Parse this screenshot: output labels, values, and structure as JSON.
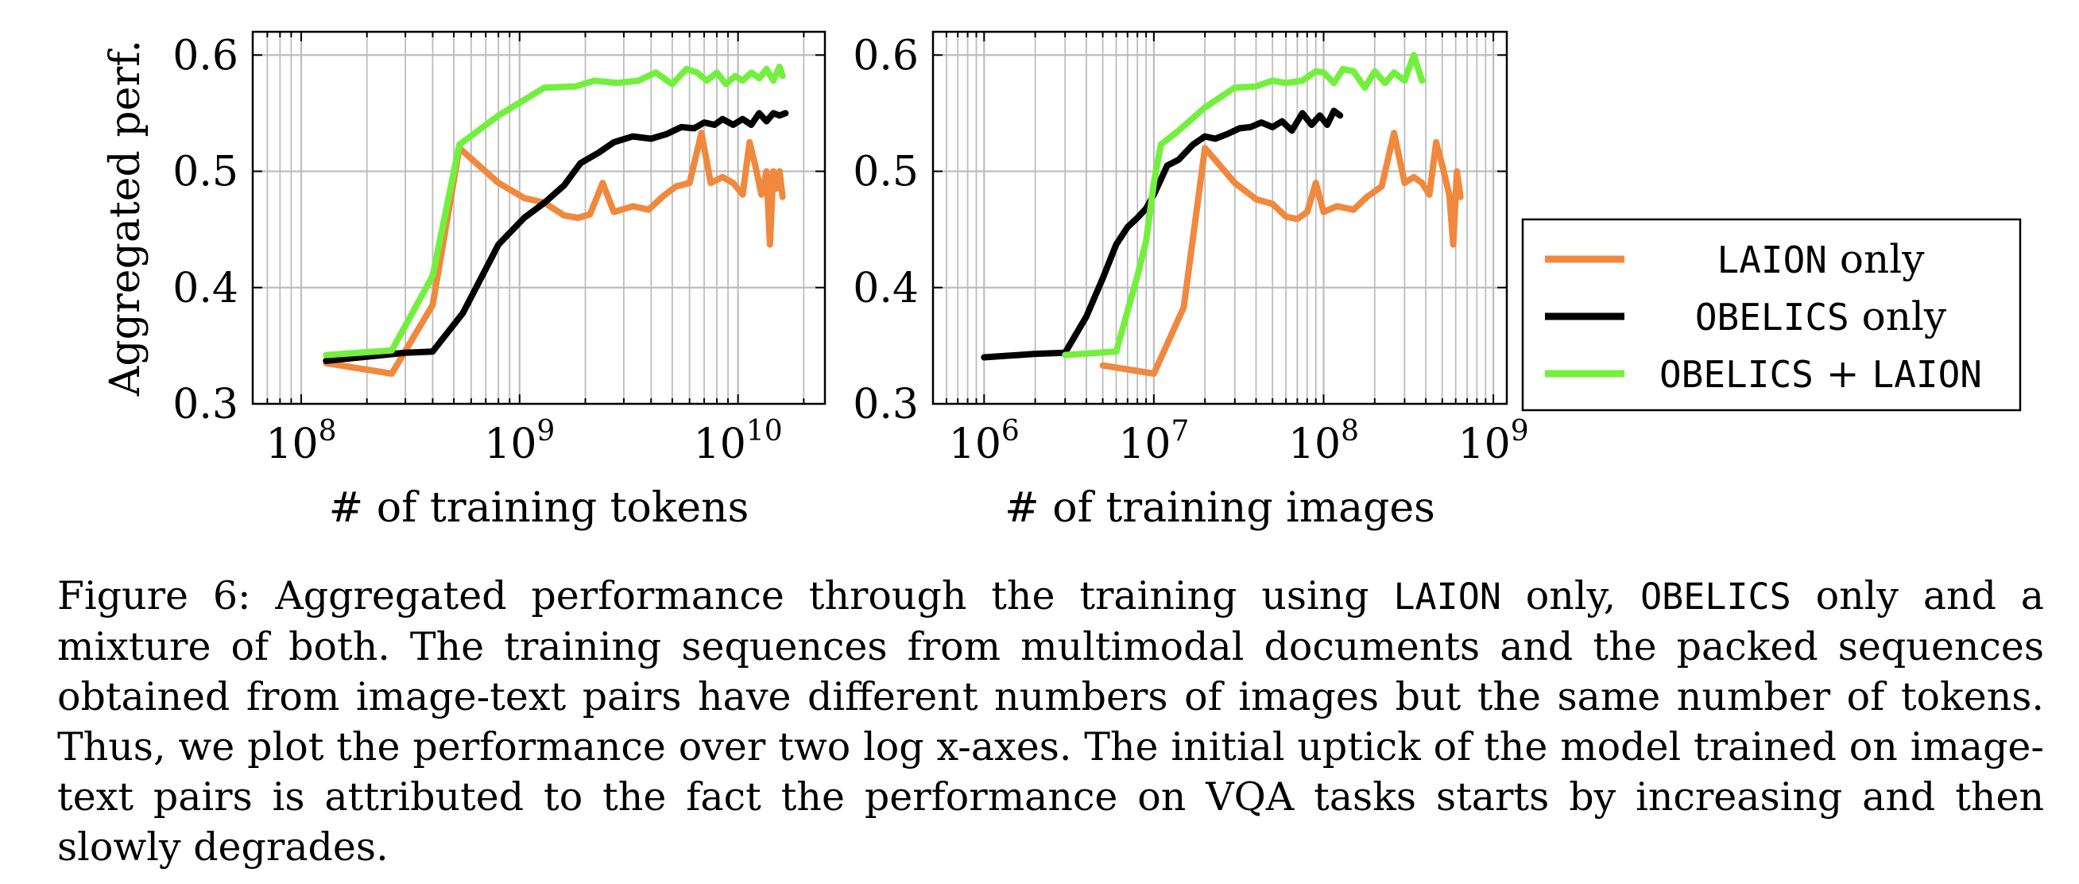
{
  "chart_data": [
    {
      "type": "line",
      "xlabel": "# of training tokens",
      "ylabel": "Aggregated perf.",
      "xscale": "log",
      "xlim": [
        60000000,
        25000000000
      ],
      "ylim": [
        0.3,
        0.62
      ],
      "xticks": [
        100000000,
        1000000000,
        10000000000
      ],
      "xtick_labels": [
        {
          "base": "10",
          "exp": "8"
        },
        {
          "base": "10",
          "exp": "9"
        },
        {
          "base": "10",
          "exp": "10"
        }
      ],
      "yticks": [
        "0.3",
        "0.4",
        "0.5",
        "0.6"
      ],
      "grid": true,
      "series": [
        {
          "name": "LAION only",
          "color": "#f0883e",
          "x": [
            130000000,
            260000000,
            400000000,
            530000000,
            800000000,
            1050000000,
            1300000000,
            1600000000,
            1850000000,
            2100000000,
            2400000000,
            2700000000,
            3300000000,
            3900000000,
            4500000000,
            5200000000,
            6000000000,
            6800000000,
            7500000000,
            8500000000,
            9500000000,
            10500000000,
            11300000000,
            12000000000,
            12800000000,
            13500000000,
            14000000000,
            14500000000,
            15000000000,
            15500000000,
            16000000000
          ],
          "y": [
            0.335,
            0.326,
            0.385,
            0.52,
            0.49,
            0.477,
            0.473,
            0.462,
            0.46,
            0.463,
            0.49,
            0.465,
            0.47,
            0.467,
            0.478,
            0.487,
            0.49,
            0.533,
            0.49,
            0.495,
            0.49,
            0.48,
            0.525,
            0.505,
            0.48,
            0.5,
            0.437,
            0.5,
            0.485,
            0.5,
            0.478
          ]
        },
        {
          "name": "OBELICS only",
          "color": "#000000",
          "x": [
            130000000,
            300000000,
            400000000,
            550000000,
            800000000,
            1050000000,
            1300000000,
            1600000000,
            1900000000,
            2300000000,
            2700000000,
            3300000000,
            4000000000,
            4700000000,
            5500000000,
            6300000000,
            7000000000,
            7800000000,
            8500000000,
            9500000000,
            10500000000,
            11500000000,
            12500000000,
            13500000000,
            14500000000,
            15500000000,
            16500000000
          ],
          "y": [
            0.337,
            0.344,
            0.345,
            0.378,
            0.437,
            0.46,
            0.473,
            0.488,
            0.507,
            0.516,
            0.525,
            0.53,
            0.528,
            0.532,
            0.538,
            0.537,
            0.542,
            0.54,
            0.545,
            0.54,
            0.545,
            0.54,
            0.55,
            0.543,
            0.55,
            0.548,
            0.55
          ]
        },
        {
          "name": "OBELICS + LAION",
          "color": "#73f03e",
          "x": [
            130000000,
            260000000,
            400000000,
            530000000,
            800000000,
            1300000000,
            1800000000,
            2200000000,
            2800000000,
            3500000000,
            4200000000,
            5000000000,
            5800000000,
            6500000000,
            7200000000,
            8000000000,
            8800000000,
            9700000000,
            10500000000,
            11500000000,
            12500000000,
            13500000000,
            14500000000,
            15500000000,
            16000000000
          ],
          "y": [
            0.342,
            0.346,
            0.41,
            0.523,
            0.548,
            0.572,
            0.573,
            0.578,
            0.576,
            0.578,
            0.585,
            0.575,
            0.588,
            0.585,
            0.578,
            0.585,
            0.575,
            0.582,
            0.578,
            0.585,
            0.58,
            0.588,
            0.578,
            0.59,
            0.582
          ]
        }
      ]
    },
    {
      "type": "line",
      "xlabel": "# of training images",
      "ylabel": "",
      "xscale": "log",
      "xlim": [
        500000,
        1200000000
      ],
      "ylim": [
        0.3,
        0.62
      ],
      "xticks": [
        1000000,
        10000000,
        100000000,
        1000000000
      ],
      "xtick_labels": [
        {
          "base": "10",
          "exp": "6"
        },
        {
          "base": "10",
          "exp": "7"
        },
        {
          "base": "10",
          "exp": "8"
        },
        {
          "base": "10",
          "exp": "9"
        }
      ],
      "yticks": [
        "0.3",
        "0.4",
        "0.5",
        "0.6"
      ],
      "grid": true,
      "series": [
        {
          "name": "LAION only",
          "color": "#f0883e",
          "x": [
            5000000,
            10000000,
            15000000,
            20000000,
            30000000,
            40000000,
            50000000,
            60000000,
            70000000,
            80000000,
            90000000,
            100000000,
            120000000,
            150000000,
            180000000,
            220000000,
            260000000,
            300000000,
            340000000,
            380000000,
            420000000,
            460000000,
            500000000,
            550000000,
            580000000,
            610000000,
            640000000
          ],
          "y": [
            0.333,
            0.326,
            0.383,
            0.52,
            0.49,
            0.476,
            0.472,
            0.461,
            0.459,
            0.465,
            0.49,
            0.465,
            0.47,
            0.467,
            0.478,
            0.487,
            0.533,
            0.49,
            0.495,
            0.49,
            0.48,
            0.525,
            0.505,
            0.48,
            0.437,
            0.5,
            0.478
          ]
        },
        {
          "name": "OBELICS only",
          "color": "#000000",
          "x": [
            1000000,
            2000000,
            3000000,
            4000000,
            5000000,
            6000000,
            7000000,
            8000000,
            9000000,
            10000000,
            12000000,
            14000000,
            17000000,
            20000000,
            23000000,
            27000000,
            32000000,
            37000000,
            43000000,
            50000000,
            57000000,
            65000000,
            75000000,
            85000000,
            95000000,
            105000000,
            115000000,
            125000000
          ],
          "y": [
            0.34,
            0.343,
            0.344,
            0.375,
            0.408,
            0.437,
            0.452,
            0.46,
            0.468,
            0.48,
            0.505,
            0.51,
            0.523,
            0.53,
            0.528,
            0.532,
            0.537,
            0.538,
            0.542,
            0.538,
            0.543,
            0.535,
            0.55,
            0.54,
            0.548,
            0.54,
            0.552,
            0.548
          ]
        },
        {
          "name": "OBELICS + LAION",
          "color": "#73f03e",
          "x": [
            3000000,
            6000000,
            8000000,
            9000000,
            10000000,
            11000000,
            14000000,
            20000000,
            30000000,
            40000000,
            50000000,
            60000000,
            75000000,
            90000000,
            100000000,
            115000000,
            130000000,
            150000000,
            175000000,
            200000000,
            230000000,
            260000000,
            300000000,
            340000000,
            380000000
          ],
          "y": [
            0.342,
            0.345,
            0.41,
            0.44,
            0.49,
            0.523,
            0.535,
            0.555,
            0.572,
            0.573,
            0.578,
            0.576,
            0.578,
            0.586,
            0.585,
            0.576,
            0.588,
            0.586,
            0.572,
            0.586,
            0.576,
            0.585,
            0.578,
            0.6,
            0.578
          ]
        }
      ]
    }
  ],
  "legend": {
    "entries": [
      {
        "key": "LAION",
        "text": " only",
        "color": "#f0883e"
      },
      {
        "key": "OBELICS",
        "text": " only",
        "color": "#000000"
      },
      {
        "key": "OBELICS",
        "text": " + ",
        "key2": "LAION",
        "color": "#73f03e"
      }
    ]
  },
  "caption": {
    "label": "Figure 6:",
    "t1": " Aggregated performance through the training using ",
    "m1": "LAION",
    "t2": " only, ",
    "m2": "OBELICS",
    "t3": " only and a mixture of both. The training sequences from multimodal documents and the packed sequences obtained from image-text pairs have different numbers of images but the same number of tokens. Thus, we plot the performance over two log x-axes. The initial uptick of the model trained on image-text pairs is attributed to the fact the performance on VQA tasks starts by increasing and then slowly degrades."
  }
}
